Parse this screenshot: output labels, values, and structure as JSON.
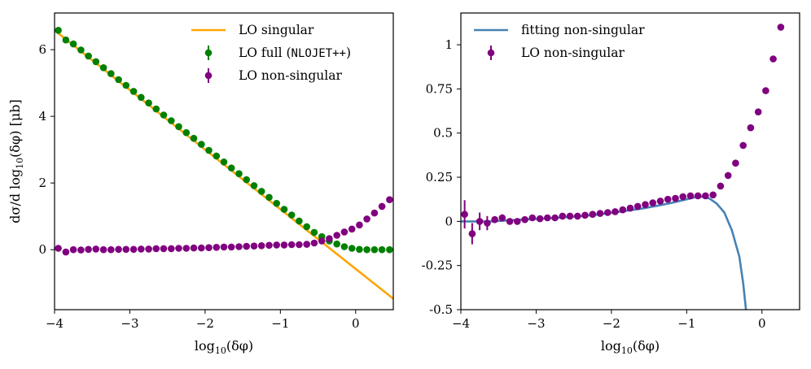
{
  "chart_data": [
    {
      "type": "scatter",
      "title": "",
      "xlabel": "log10(δφ)",
      "ylabel": "dσ/d log10(δφ) [μb]",
      "xlim": [
        -4,
        0.5
      ],
      "ylim": [
        -1.8,
        7.1
      ],
      "xticks": [
        -4,
        -3,
        -2,
        -1,
        0
      ],
      "xtick_labels": [
        "−4",
        "−3",
        "−2",
        "−1",
        "0"
      ],
      "yticks": [
        0,
        2,
        4,
        6
      ],
      "ytick_labels": [
        "0",
        "2",
        "4",
        "6"
      ],
      "grid": false,
      "legend_position": "top-right",
      "series": [
        {
          "name": "LO singular",
          "kind": "line",
          "color": "#ffa500",
          "x": [
            -4.0,
            0.5
          ],
          "y": [
            6.58,
            -1.47
          ]
        },
        {
          "name": "LO full (NLOJET++)",
          "name_prefix": "LO full (",
          "name_mono": "NLOJET++",
          "name_suffix": ")",
          "kind": "errorbar",
          "color": "#008000",
          "x": [
            -3.95,
            -3.85,
            -3.75,
            -3.65,
            -3.55,
            -3.45,
            -3.35,
            -3.25,
            -3.15,
            -3.05,
            -2.95,
            -2.85,
            -2.75,
            -2.65,
            -2.55,
            -2.45,
            -2.35,
            -2.25,
            -2.15,
            -2.05,
            -1.95,
            -1.85,
            -1.75,
            -1.65,
            -1.55,
            -1.45,
            -1.35,
            -1.25,
            -1.15,
            -1.05,
            -0.95,
            -0.85,
            -0.75,
            -0.65,
            -0.55,
            -0.45,
            -0.35,
            -0.25,
            -0.15,
            -0.05,
            0.05,
            0.15,
            0.25,
            0.35,
            0.45
          ],
          "y": [
            6.58,
            6.29,
            6.17,
            5.99,
            5.81,
            5.64,
            5.46,
            5.28,
            5.1,
            4.93,
            4.75,
            4.57,
            4.4,
            4.22,
            4.04,
            3.87,
            3.69,
            3.51,
            3.34,
            3.16,
            2.98,
            2.81,
            2.63,
            2.45,
            2.28,
            2.1,
            1.92,
            1.75,
            1.57,
            1.39,
            1.21,
            1.04,
            0.86,
            0.69,
            0.52,
            0.39,
            0.26,
            0.17,
            0.09,
            0.04,
            0.01,
            0.0,
            0.0,
            0.0,
            0.0
          ]
        },
        {
          "name": "LO non-singular",
          "kind": "errorbar",
          "color": "#800080",
          "x": [
            -3.95,
            -3.85,
            -3.75,
            -3.65,
            -3.55,
            -3.45,
            -3.35,
            -3.25,
            -3.15,
            -3.05,
            -2.95,
            -2.85,
            -2.75,
            -2.65,
            -2.55,
            -2.45,
            -2.35,
            -2.25,
            -2.15,
            -2.05,
            -1.95,
            -1.85,
            -1.75,
            -1.65,
            -1.55,
            -1.45,
            -1.35,
            -1.25,
            -1.15,
            -1.05,
            -0.95,
            -0.85,
            -0.75,
            -0.65,
            -0.55,
            -0.45,
            -0.35,
            -0.25,
            -0.15,
            -0.05,
            0.05,
            0.15,
            0.25,
            0.35,
            0.45
          ],
          "y": [
            0.04,
            -0.07,
            0.0,
            -0.01,
            0.01,
            0.02,
            0.0,
            0.0,
            0.01,
            0.01,
            0.01,
            0.02,
            0.02,
            0.03,
            0.03,
            0.03,
            0.04,
            0.04,
            0.05,
            0.05,
            0.06,
            0.07,
            0.08,
            0.08,
            0.09,
            0.1,
            0.11,
            0.12,
            0.13,
            0.14,
            0.14,
            0.15,
            0.15,
            0.16,
            0.2,
            0.26,
            0.33,
            0.43,
            0.53,
            0.62,
            0.74,
            0.92,
            1.1,
            1.3,
            1.5
          ]
        }
      ]
    },
    {
      "type": "scatter",
      "title": "",
      "xlabel": "log10(δφ)",
      "ylabel": "",
      "xlim": [
        -4,
        0.5
      ],
      "ylim": [
        -0.5,
        1.18
      ],
      "xticks": [
        -4,
        -3,
        -2,
        -1,
        0
      ],
      "xtick_labels": [
        "−4",
        "−3",
        "−2",
        "−1",
        "0"
      ],
      "yticks": [
        -0.5,
        -0.25,
        0,
        0.25,
        0.5,
        0.75,
        1
      ],
      "ytick_labels": [
        "-0.5",
        "-0.25",
        "0",
        "0.25",
        "0.5",
        "0.75",
        "1"
      ],
      "grid": false,
      "legend_position": "top-left",
      "series": [
        {
          "name": "fitting non-singular",
          "kind": "line",
          "color": "#4682b4",
          "x": [
            -4.0,
            -3.8,
            -3.6,
            -3.4,
            -3.2,
            -3.0,
            -2.8,
            -2.6,
            -2.4,
            -2.2,
            -2.0,
            -1.8,
            -1.6,
            -1.4,
            -1.2,
            -1.0,
            -0.9,
            -0.8,
            -0.7,
            -0.6,
            -0.5,
            -0.4,
            -0.3,
            -0.25,
            -0.2
          ],
          "y": [
            0.0,
            0.0,
            0.0,
            0.005,
            0.01,
            0.013,
            0.018,
            0.024,
            0.03,
            0.038,
            0.048,
            0.06,
            0.072,
            0.088,
            0.105,
            0.125,
            0.135,
            0.14,
            0.13,
            0.1,
            0.05,
            -0.05,
            -0.2,
            -0.35,
            -0.55
          ]
        },
        {
          "name": "LO non-singular",
          "kind": "errorbar",
          "color": "#800080",
          "x": [
            -3.95,
            -3.85,
            -3.75,
            -3.65,
            -3.55,
            -3.45,
            -3.35,
            -3.25,
            -3.15,
            -3.05,
            -2.95,
            -2.85,
            -2.75,
            -2.65,
            -2.55,
            -2.45,
            -2.35,
            -2.25,
            -2.15,
            -2.05,
            -1.95,
            -1.85,
            -1.75,
            -1.65,
            -1.55,
            -1.45,
            -1.35,
            -1.25,
            -1.15,
            -1.05,
            -0.95,
            -0.85,
            -0.75,
            -0.65,
            -0.55,
            -0.45,
            -0.35,
            -0.25,
            -0.15,
            -0.05,
            0.05,
            0.15,
            0.25
          ],
          "y": [
            0.04,
            -0.07,
            0.0,
            -0.01,
            0.01,
            0.02,
            0.0,
            0.0,
            0.01,
            0.02,
            0.015,
            0.02,
            0.02,
            0.03,
            0.03,
            0.03,
            0.035,
            0.04,
            0.045,
            0.05,
            0.055,
            0.065,
            0.075,
            0.085,
            0.095,
            0.105,
            0.115,
            0.125,
            0.13,
            0.14,
            0.145,
            0.145,
            0.145,
            0.15,
            0.2,
            0.26,
            0.33,
            0.43,
            0.53,
            0.62,
            0.74,
            0.92,
            1.1
          ],
          "err": [
            0.08,
            0.06,
            0.05,
            0.04,
            0.02,
            0.02,
            0.015,
            0.01,
            0.01,
            0.01,
            0.008,
            0.008,
            0.006,
            0.006,
            0.005,
            0.005,
            0.005,
            0.005,
            0.005,
            0.005,
            0.005,
            0.005,
            0.005,
            0.005,
            0.005,
            0.005,
            0.005,
            0.005,
            0.005,
            0.005,
            0.005,
            0.005,
            0.005,
            0.005,
            0.005,
            0.005,
            0.005,
            0.005,
            0.005,
            0.005,
            0.005,
            0.005,
            0.005
          ]
        }
      ]
    }
  ]
}
